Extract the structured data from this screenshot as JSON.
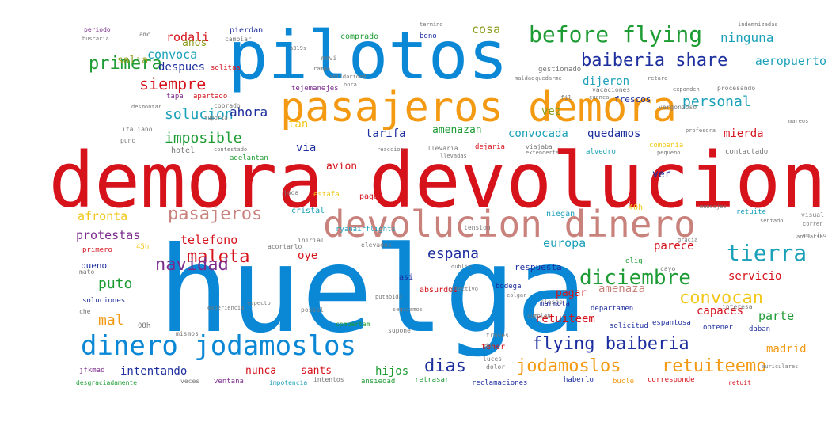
{
  "colors": {
    "blue": "#0a88d6",
    "red": "#d6121b",
    "orange": "#f39a12",
    "rose": "#c9817c",
    "navy": "#1d2e9e",
    "green": "#1e9c34",
    "purple": "#7b2b8c",
    "olive": "#8c9c1c",
    "teal": "#1aa0b8",
    "yellow": "#f2c71a",
    "brown": "#8a3a1a",
    "gray": "#777777",
    "magenta": "#c2258e"
  },
  "words": [
    {
      "text": "huelga",
      "color": "blue",
      "size": 150
    },
    {
      "text": "demora devolucion",
      "color": "red",
      "size": 96
    },
    {
      "text": "pilotos",
      "color": "blue",
      "size": 84
    },
    {
      "text": "pasajeros demora",
      "color": "orange",
      "size": 52
    },
    {
      "text": "devolucion dinero",
      "color": "rose",
      "size": 46
    },
    {
      "text": "dinero jodamoslos",
      "color": "blue",
      "size": 34
    },
    {
      "text": "before flying",
      "color": "green",
      "size": 28
    },
    {
      "text": "baiberia share",
      "color": "navy",
      "size": 22
    },
    {
      "text": "pasajeros",
      "color": "rose",
      "size": 22
    },
    {
      "text": "diciembre",
      "color": "green",
      "size": 26
    },
    {
      "text": "tierra",
      "color": "teal",
      "size": 28
    },
    {
      "text": "flying baiberia",
      "color": "navy",
      "size": 22
    },
    {
      "text": "jodamoslos",
      "color": "orange",
      "size": 22
    },
    {
      "text": "retuiteemo",
      "color": "orange",
      "size": 22
    },
    {
      "text": "dias",
      "color": "navy",
      "size": 22
    },
    {
      "text": "convocan",
      "color": "yellow",
      "size": 22
    },
    {
      "text": "maleta",
      "color": "red",
      "size": 22
    },
    {
      "text": "navidad",
      "color": "purple",
      "size": 22
    },
    {
      "text": "primera",
      "color": "green",
      "size": 22
    },
    {
      "text": "siempre",
      "color": "red",
      "size": 20
    },
    {
      "text": "solucion",
      "color": "teal",
      "size": 18
    },
    {
      "text": "imposible",
      "color": "green",
      "size": 18
    },
    {
      "text": "personal",
      "color": "teal",
      "size": 18
    },
    {
      "text": "espana",
      "color": "navy",
      "size": 18
    },
    {
      "text": "puto",
      "color": "green",
      "size": 18
    },
    {
      "text": "mal",
      "color": "orange",
      "size": 18
    },
    {
      "text": "ahora",
      "color": "navy",
      "size": 16
    },
    {
      "text": "protestas",
      "color": "purple",
      "size": 15
    },
    {
      "text": "telefono",
      "color": "red",
      "size": 15
    },
    {
      "text": "afronta",
      "color": "yellow",
      "size": 15
    },
    {
      "text": "ninguna",
      "color": "teal",
      "size": 16
    },
    {
      "text": "rodali",
      "color": "red",
      "size": 15
    },
    {
      "text": "cosa",
      "color": "olive",
      "size": 15
    },
    {
      "text": "convoca",
      "color": "teal",
      "size": 15
    },
    {
      "text": "despues",
      "color": "navy",
      "size": 14
    },
    {
      "text": "quedamos",
      "color": "navy",
      "size": 14
    },
    {
      "text": "convocada",
      "color": "teal",
      "size": 14
    },
    {
      "text": "dijeron",
      "color": "teal",
      "size": 14
    },
    {
      "text": "vez",
      "color": "olive",
      "size": 14
    },
    {
      "text": "tarifa",
      "color": "navy",
      "size": 14
    },
    {
      "text": "mierda",
      "color": "red",
      "size": 14
    },
    {
      "text": "aeropuerto",
      "color": "teal",
      "size": 15
    },
    {
      "text": "amenazan",
      "color": "green",
      "size": 13
    },
    {
      "text": "europa",
      "color": "teal",
      "size": 15
    },
    {
      "text": "parece",
      "color": "red",
      "size": 14
    },
    {
      "text": "servicio",
      "color": "red",
      "size": 14
    },
    {
      "text": "madrid",
      "color": "orange",
      "size": 14
    },
    {
      "text": "parte",
      "color": "green",
      "size": 15
    },
    {
      "text": "capaces",
      "color": "red",
      "size": 14
    },
    {
      "text": "retuiteem",
      "color": "red",
      "size": 14
    },
    {
      "text": "amenaza",
      "color": "rose",
      "size": 14
    },
    {
      "text": "pagar",
      "color": "red",
      "size": 13
    },
    {
      "text": "oye",
      "color": "red",
      "size": 14
    },
    {
      "text": "intentando",
      "color": "navy",
      "size": 14
    },
    {
      "text": "nunca",
      "color": "red",
      "size": 13
    },
    {
      "text": "sants",
      "color": "red",
      "size": 13
    },
    {
      "text": "hijos",
      "color": "green",
      "size": 14
    },
    {
      "text": "tan",
      "color": "yellow",
      "size": 14
    },
    {
      "text": "via",
      "color": "navy",
      "size": 14
    },
    {
      "text": "anos",
      "color": "olive",
      "size": 13
    },
    {
      "text": "salia",
      "color": "olive",
      "size": 13
    },
    {
      "text": "avion",
      "color": "red",
      "size": 13
    },
    {
      "text": "ver",
      "color": "navy",
      "size": 13
    },
    {
      "text": "respuesta",
      "color": "navy",
      "size": 11
    },
    {
      "text": "bueno",
      "color": "navy",
      "size": 11
    },
    {
      "text": "frescos",
      "color": "navy",
      "size": 11
    },
    {
      "text": "hotel",
      "color": "gray",
      "size": 10
    },
    {
      "text": "cristal",
      "color": "teal",
      "size": 10
    },
    {
      "text": "pierdan",
      "color": "navy",
      "size": 10
    },
    {
      "text": "comprado",
      "color": "green",
      "size": 10
    },
    {
      "text": "bono",
      "color": "navy",
      "size": 9
    },
    {
      "text": "solitas",
      "color": "red",
      "size": 9
    },
    {
      "text": "adelantan",
      "color": "green",
      "size": 9
    },
    {
      "text": "alvedro",
      "color": "teal",
      "size": 9
    },
    {
      "text": "compania",
      "color": "yellow",
      "size": 9
    },
    {
      "text": "contactado",
      "color": "gray",
      "size": 9
    },
    {
      "text": "tejemanejes",
      "color": "purple",
      "size": 9
    },
    {
      "text": "gestionado",
      "color": "gray",
      "size": 9
    },
    {
      "text": "vacaciones",
      "color": "gray",
      "size": 8
    },
    {
      "text": "apartado",
      "color": "red",
      "size": 9
    },
    {
      "text": "tapa",
      "color": "purple",
      "size": 9
    },
    {
      "text": "retuite",
      "color": "teal",
      "size": 9
    },
    {
      "text": "niegan",
      "color": "teal",
      "size": 10
    },
    {
      "text": "40h",
      "color": "yellow",
      "size": 10
    },
    {
      "text": "ryanairflights",
      "color": "teal",
      "size": 9
    },
    {
      "text": "tension",
      "color": "gray",
      "size": 8
    },
    {
      "text": "estafa",
      "color": "yellow",
      "size": 9
    },
    {
      "text": "pagas",
      "color": "red",
      "size": 10
    },
    {
      "text": "joda",
      "color": "gray",
      "size": 8
    },
    {
      "text": "inicial",
      "color": "gray",
      "size": 8
    },
    {
      "text": "acortarlo",
      "color": "gray",
      "size": 8
    },
    {
      "text": "elevados",
      "color": "gray",
      "size": 8
    },
    {
      "text": "asi",
      "color": "navy",
      "size": 10
    },
    {
      "text": "absurdos",
      "color": "red",
      "size": 10
    },
    {
      "text": "bodega",
      "color": "navy",
      "size": 9
    },
    {
      "text": "elig",
      "color": "green",
      "size": 9
    },
    {
      "text": "cayo",
      "color": "gray",
      "size": 8
    },
    {
      "text": "riesgo",
      "color": "gray",
      "size": 8
    },
    {
      "text": "obtener",
      "color": "navy",
      "size": 9
    },
    {
      "text": "daban",
      "color": "navy",
      "size": 9
    },
    {
      "text": "espantosa",
      "color": "navy",
      "size": 9
    },
    {
      "text": "solicitud",
      "color": "navy",
      "size": 9
    },
    {
      "text": "departamen",
      "color": "navy",
      "size": 9
    },
    {
      "text": "marmota",
      "color": "navy",
      "size": 9
    },
    {
      "text": "tener",
      "color": "red",
      "size": 10
    },
    {
      "text": "suponer",
      "color": "gray",
      "size": 8
    },
    {
      "text": "traves",
      "color": "gray",
      "size": 8
    },
    {
      "text": "luces",
      "color": "gray",
      "size": 8
    },
    {
      "text": "dolor",
      "color": "gray",
      "size": 8
    },
    {
      "text": "intentos",
      "color": "gray",
      "size": 8
    },
    {
      "text": "compartam",
      "color": "green",
      "size": 8
    },
    {
      "text": "posibl",
      "color": "gray",
      "size": 8
    },
    {
      "text": "mismos",
      "color": "gray",
      "size": 8
    },
    {
      "text": "08h",
      "color": "gray",
      "size": 9
    },
    {
      "text": "soluciones",
      "color": "navy",
      "size": 9
    },
    {
      "text": "mato",
      "color": "gray",
      "size": 8
    },
    {
      "text": "che",
      "color": "gray",
      "size": 8
    },
    {
      "text": "primero",
      "color": "red",
      "size": 9
    },
    {
      "text": "45h",
      "color": "yellow",
      "size": 9
    },
    {
      "text": "jfkmad",
      "color": "purple",
      "size": 9
    },
    {
      "text": "desgraciadamente",
      "color": "green",
      "size": 8
    },
    {
      "text": "veces",
      "color": "gray",
      "size": 8
    },
    {
      "text": "ventana",
      "color": "purple",
      "size": 9
    },
    {
      "text": "impotencia",
      "color": "teal",
      "size": 8
    },
    {
      "text": "ansiedad",
      "color": "green",
      "size": 9
    },
    {
      "text": "retrasar",
      "color": "green",
      "size": 9
    },
    {
      "text": "reclamaciones",
      "color": "navy",
      "size": 9
    },
    {
      "text": "haberlo",
      "color": "navy",
      "size": 9
    },
    {
      "text": "bucle",
      "color": "orange",
      "size": 9
    },
    {
      "text": "corresponde",
      "color": "red",
      "size": 9
    },
    {
      "text": "retuit",
      "color": "red",
      "size": 8
    },
    {
      "text": "interesa",
      "color": "gray",
      "size": 8
    },
    {
      "text": "aniuario",
      "color": "gray",
      "size": 7
    },
    {
      "text": "visual",
      "color": "gray",
      "size": 8
    },
    {
      "text": "correr",
      "color": "gray",
      "size": 7
    },
    {
      "text": "mensajes",
      "color": "gray",
      "size": 7
    },
    {
      "text": "periodo",
      "color": "purple",
      "size": 8
    },
    {
      "text": "buscaria",
      "color": "gray",
      "size": 7
    },
    {
      "text": "amo",
      "color": "gray",
      "size": 8
    },
    {
      "text": "cambiar",
      "color": "gray",
      "size": 8
    },
    {
      "text": "cobrado",
      "color": "gray",
      "size": 8
    },
    {
      "text": "movi",
      "color": "gray",
      "size": 8
    },
    {
      "text": "solidaridad",
      "color": "gray",
      "size": 7
    },
    {
      "text": "fil",
      "color": "gray",
      "size": 8
    },
    {
      "text": "quedarme",
      "color": "gray",
      "size": 7
    },
    {
      "text": "retard",
      "color": "gray",
      "size": 7
    },
    {
      "text": "vergonzoso",
      "color": "gray",
      "size": 8
    },
    {
      "text": "procesando",
      "color": "gray",
      "size": 8
    },
    {
      "text": "viajaba",
      "color": "gray",
      "size": 8
    },
    {
      "text": "llevaria",
      "color": "gray",
      "size": 8
    },
    {
      "text": "dejaria",
      "color": "red",
      "size": 9
    },
    {
      "text": "italiano",
      "color": "gray",
      "size": 8
    },
    {
      "text": "puno",
      "color": "gray",
      "size": 8
    },
    {
      "text": "mareos",
      "color": "gray",
      "size": 7
    },
    {
      "text": "termino",
      "color": "gray",
      "size": 7
    },
    {
      "text": "indemnizadas",
      "color": "gray",
      "size": 7
    },
    {
      "text": "a319s",
      "color": "gray",
      "size": 7
    },
    {
      "text": "maldad",
      "color": "gray",
      "size": 7
    },
    {
      "text": "reaccion",
      "color": "gray",
      "size": 7
    },
    {
      "text": "extenderte",
      "color": "gray",
      "size": 7
    },
    {
      "text": "pequeno",
      "color": "gray",
      "size": 7
    },
    {
      "text": "profesora",
      "color": "gray",
      "size": 7
    },
    {
      "text": "colgar",
      "color": "gray",
      "size": 7
    },
    {
      "text": "respecto",
      "color": "gray",
      "size": 7
    },
    {
      "text": "putabida",
      "color": "gray",
      "size": 7
    },
    {
      "text": "seguiamos",
      "color": "gray",
      "size": 7
    },
    {
      "text": "experiencia",
      "color": "gray",
      "size": 7
    },
    {
      "text": "expanden",
      "color": "gray",
      "size": 7
    },
    {
      "text": "rampa",
      "color": "gray",
      "size": 7
    },
    {
      "text": "dublin",
      "color": "gray",
      "size": 7
    },
    {
      "text": "colectivo",
      "color": "gray",
      "size": 7
    },
    {
      "text": "desmontar",
      "color": "gray",
      "size": 7
    },
    {
      "text": "tuporia",
      "color": "gray",
      "size": 7
    },
    {
      "text": "contestado",
      "color": "gray",
      "size": 7
    },
    {
      "text": "llevadas",
      "color": "gray",
      "size": 7
    },
    {
      "text": "nora",
      "color": "gray",
      "size": 7
    },
    {
      "text": "cuenca",
      "color": "gray",
      "size": 7
    },
    {
      "text": "auriculares",
      "color": "gray",
      "size": 7
    },
    {
      "text": "sentado",
      "color": "gray",
      "size": 7
    },
    {
      "text": "cumplen",
      "color": "gray",
      "size": 7
    },
    {
      "text": "matricu",
      "color": "gray",
      "size": 7
    },
    {
      "text": "gracia",
      "color": "gray",
      "size": 7
    },
    {
      "text": "dos",
      "color": "gray",
      "size": 7
    }
  ]
}
